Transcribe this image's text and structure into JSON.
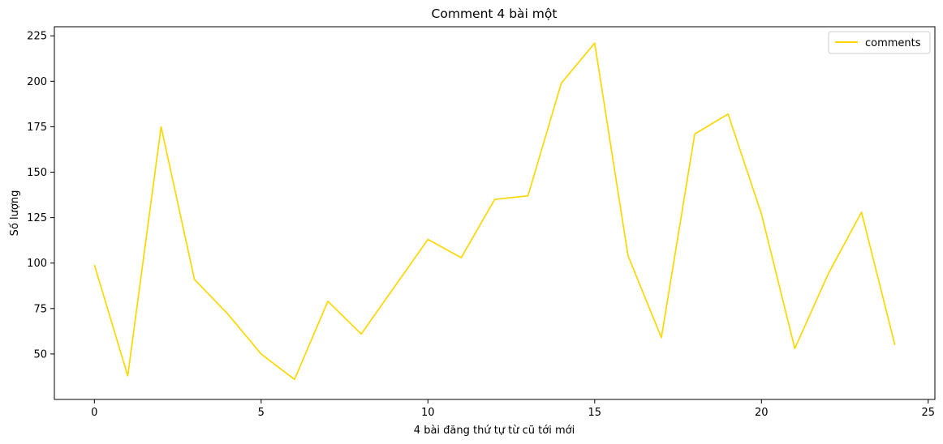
{
  "chart_data": {
    "type": "line",
    "title": "Comment 4 bài một",
    "xlabel": "4 bài đăng thứ tự từ cũ tới mới",
    "ylabel": "Số lượng",
    "xlim": [
      -1.2,
      25.2
    ],
    "ylim": [
      25,
      230
    ],
    "xticks": [
      0,
      5,
      10,
      15,
      20,
      25
    ],
    "yticks": [
      50,
      75,
      100,
      125,
      150,
      175,
      200,
      225
    ],
    "grid": false,
    "legend_position": "top-right",
    "series": [
      {
        "name": "comments",
        "color": "#FFD700",
        "x": [
          0,
          1,
          2,
          3,
          4,
          5,
          6,
          7,
          8,
          9,
          10,
          11,
          12,
          13,
          14,
          15,
          16,
          17,
          18,
          19,
          20,
          21,
          22,
          23,
          24
        ],
        "y": [
          99,
          38,
          175,
          91,
          72,
          50,
          36,
          79,
          61,
          87,
          113,
          103,
          135,
          137,
          199,
          221,
          104,
          59,
          171,
          182,
          127,
          53,
          94,
          128,
          55
        ]
      }
    ]
  }
}
